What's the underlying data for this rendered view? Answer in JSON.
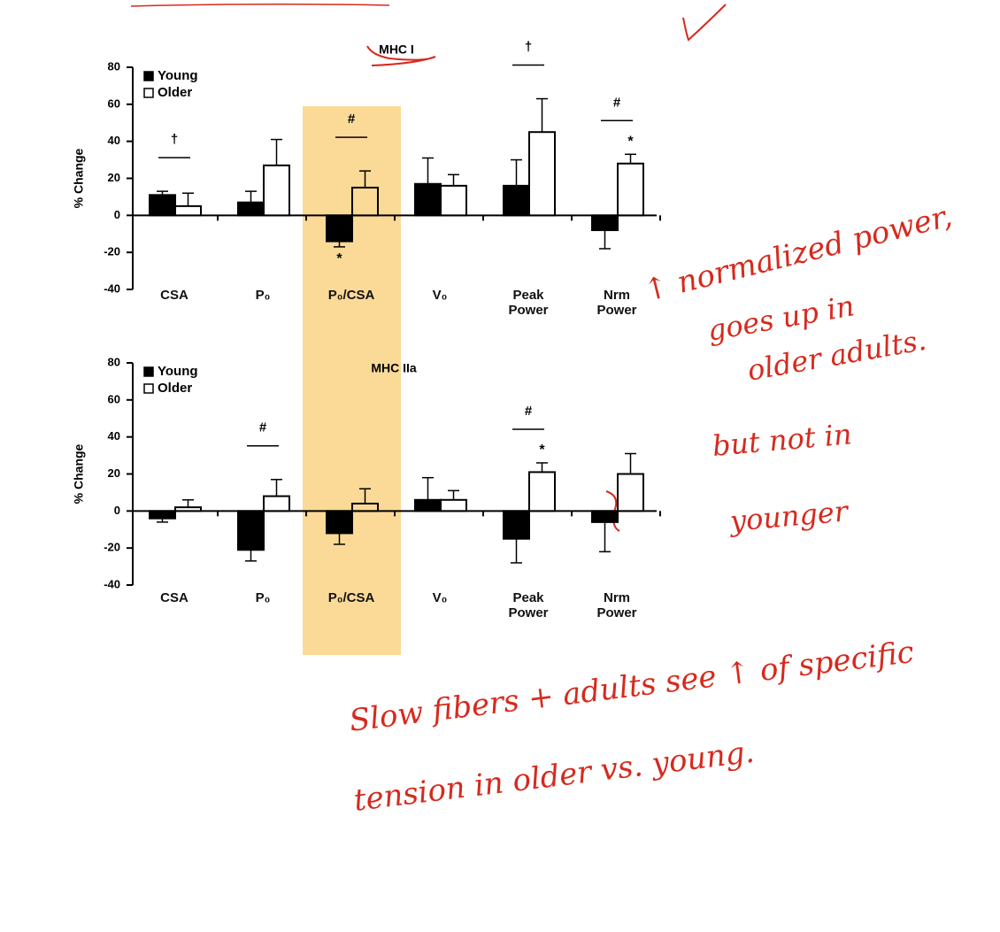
{
  "chart_data": [
    {
      "type": "bar",
      "title": "MHC I",
      "ylabel": "% Change",
      "categories": [
        "CSA",
        "P₀",
        "P₀/CSA",
        "V₀",
        "Peak Power",
        "Nrm Power"
      ],
      "series": [
        {
          "name": "Young",
          "color": "#000000",
          "values": [
            11,
            7,
            -14,
            17,
            16,
            -8
          ],
          "errors": [
            2,
            6,
            3,
            14,
            14,
            10
          ],
          "star_labels": [
            null,
            null,
            "*",
            null,
            null,
            null
          ]
        },
        {
          "name": "Older",
          "color": "#ffffff",
          "values": [
            5,
            27,
            15,
            16,
            45,
            28
          ],
          "errors": [
            7,
            14,
            9,
            6,
            18,
            5
          ],
          "star_labels": [
            null,
            null,
            null,
            null,
            null,
            "*"
          ]
        }
      ],
      "significance": [
        "†",
        null,
        "#",
        null,
        "†",
        "#"
      ],
      "ylim": [
        -40,
        80
      ],
      "yticks": [
        -40,
        -20,
        0,
        20,
        40,
        60,
        80
      ],
      "legend": "top-left"
    },
    {
      "type": "bar",
      "title": "MHC IIa",
      "ylabel": "% Change",
      "categories": [
        "CSA",
        "P₀",
        "P₀/CSA",
        "V₀",
        "Peak Power",
        "Nrm Power"
      ],
      "series": [
        {
          "name": "Young",
          "color": "#000000",
          "values": [
            -4,
            -21,
            -12,
            6,
            -15,
            -6
          ],
          "errors": [
            2,
            6,
            6,
            12,
            13,
            16
          ],
          "star_labels": [
            null,
            null,
            null,
            null,
            null,
            null
          ]
        },
        {
          "name": "Older",
          "color": "#ffffff",
          "values": [
            2,
            8,
            4,
            6,
            21,
            20
          ],
          "errors": [
            4,
            9,
            8,
            5,
            5,
            11
          ],
          "star_labels": [
            null,
            null,
            null,
            null,
            "*",
            null
          ]
        }
      ],
      "significance": [
        null,
        "#",
        null,
        null,
        "#",
        null
      ],
      "ylim": [
        -40,
        80
      ],
      "yticks": [
        -40,
        -20,
        0,
        20,
        40,
        60,
        80
      ],
      "legend": "top-left"
    }
  ],
  "handwritten_notes": [
    "↑ normalized power,",
    "goes up in",
    "older adults.",
    "but not in",
    "younger",
    "Slow fibers + adults see ↑ of specific",
    "tension in older vs. young."
  ]
}
